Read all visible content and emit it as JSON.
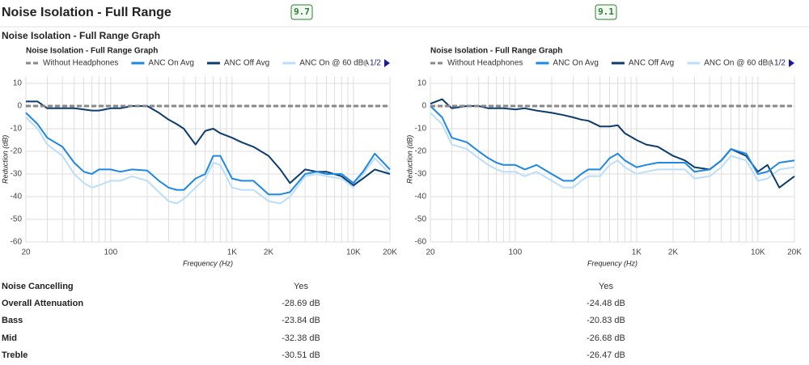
{
  "header": {
    "title": "Noise Isolation - Full Range",
    "scores": [
      9.7,
      9.1
    ]
  },
  "section_title": "Noise Isolation - Full Range Graph",
  "chart_data": [
    {
      "type": "line",
      "title": "Noise Isolation - Full Range Graph",
      "x_label": "Frequency (Hz)",
      "y_label": "Reduction (dB)",
      "log_x": true,
      "grid": true,
      "legend_page": "1/2",
      "x": [
        20,
        25,
        30,
        40,
        50,
        60,
        70,
        80,
        100,
        120,
        150,
        200,
        250,
        300,
        350,
        400,
        500,
        600,
        700,
        800,
        1000,
        1200,
        1500,
        2000,
        2500,
        3000,
        4000,
        5000,
        6000,
        8000,
        10000,
        12000,
        15000,
        20000
      ],
      "xlim": [
        20,
        20000
      ],
      "xticks": [
        20,
        100,
        {
          "value": 1000,
          "label": "1K"
        },
        {
          "value": 2000,
          "label": "2K"
        },
        {
          "value": 10000,
          "label": "10K"
        },
        {
          "value": 20000,
          "label": "20K"
        }
      ],
      "xminor_ticks": [
        30,
        40,
        50,
        60,
        70,
        80,
        90,
        200,
        300,
        400,
        500,
        600,
        700,
        800,
        900,
        3000,
        4000,
        5000,
        6000,
        7000,
        8000,
        9000
      ],
      "ylim": [
        -60,
        13
      ],
      "yticks": [
        -60,
        -50,
        -40,
        -30,
        -20,
        -10,
        0,
        10
      ],
      "series": [
        {
          "name": "Without Headphones",
          "color": "#888888",
          "line_style": "dashed",
          "values": [
            0,
            0,
            0,
            0,
            0,
            0,
            0,
            0,
            0,
            0,
            0,
            0,
            0,
            0,
            0,
            0,
            0,
            0,
            0,
            0,
            0,
            0,
            0,
            0,
            0,
            0,
            0,
            0,
            0,
            0,
            0,
            0,
            0,
            0
          ]
        },
        {
          "name": "ANC On Avg",
          "color": "#1e88e5",
          "line_style": "solid",
          "values": [
            -3,
            -8,
            -14,
            -18,
            -25,
            -29,
            -30,
            -28,
            -28,
            -29,
            -28,
            -28.5,
            -33,
            -36,
            -37,
            -37,
            -32,
            -30,
            -22,
            -22,
            -32,
            -33,
            -33,
            -39,
            -39,
            -38,
            -30,
            -29,
            -30,
            -30,
            -34,
            -29,
            -21,
            -28
          ]
        },
        {
          "name": "ANC Off Avg",
          "color": "#0d3c6e",
          "line_style": "solid",
          "values": [
            2,
            2,
            -1,
            -1,
            -1,
            -1.5,
            -2,
            -2,
            -1,
            -1,
            0,
            0,
            -3,
            -6,
            -8,
            -10,
            -17,
            -11,
            -10,
            -12,
            -14,
            -16,
            -18,
            -22,
            -28,
            -34,
            -28,
            -29,
            -29,
            -31,
            -35,
            -32,
            -28,
            -30
          ]
        },
        {
          "name": "ANC On @ 60 dBA",
          "color": "#bbdefb",
          "line_style": "solid",
          "values": [
            -5,
            -10,
            -17,
            -22,
            -30,
            -34,
            -36,
            -35,
            -33,
            -33,
            -31,
            -33,
            -38,
            -42,
            -43,
            -41,
            -36,
            -32,
            -25,
            -26,
            -36,
            -37,
            -37,
            -42,
            -43,
            -40,
            -31,
            -30,
            -31,
            -32,
            -36,
            -30,
            -23,
            -30
          ]
        }
      ]
    },
    {
      "type": "line",
      "title": "Noise Isolation - Full Range Graph",
      "x_label": "Frequency (Hz)",
      "y_label": "Reduction (dB)",
      "log_x": true,
      "grid": true,
      "legend_page": "1/2",
      "x": [
        20,
        25,
        30,
        40,
        50,
        60,
        70,
        80,
        100,
        120,
        150,
        200,
        250,
        300,
        350,
        400,
        500,
        600,
        700,
        800,
        1000,
        1200,
        1500,
        2000,
        2500,
        3000,
        4000,
        5000,
        6000,
        8000,
        10000,
        12000,
        15000,
        20000
      ],
      "xlim": [
        20,
        20000
      ],
      "xticks": [
        20,
        100,
        {
          "value": 1000,
          "label": "1K"
        },
        {
          "value": 2000,
          "label": "2K"
        },
        {
          "value": 10000,
          "label": "10K"
        },
        {
          "value": 20000,
          "label": "20K"
        }
      ],
      "xminor_ticks": [
        30,
        40,
        50,
        60,
        70,
        80,
        90,
        200,
        300,
        400,
        500,
        600,
        700,
        800,
        900,
        3000,
        4000,
        5000,
        6000,
        7000,
        8000,
        9000
      ],
      "ylim": [
        -60,
        13
      ],
      "yticks": [
        -60,
        -50,
        -40,
        -30,
        -20,
        -10,
        0,
        10
      ],
      "series": [
        {
          "name": "Without Headphones",
          "color": "#888888",
          "line_style": "dashed",
          "values": [
            0,
            0,
            0,
            0,
            0,
            0,
            0,
            0,
            0,
            0,
            0,
            0,
            0,
            0,
            0,
            0,
            0,
            0,
            0,
            0,
            0,
            0,
            0,
            0,
            0,
            0,
            0,
            0,
            0,
            0,
            0,
            0,
            0,
            0
          ]
        },
        {
          "name": "ANC On Avg",
          "color": "#1e88e5",
          "line_style": "solid",
          "values": [
            0,
            -5,
            -14,
            -16,
            -20,
            -23,
            -25,
            -26,
            -26,
            -28,
            -26,
            -30,
            -33,
            -33,
            -30,
            -28,
            -28,
            -23,
            -21,
            -24,
            -27,
            -26,
            -25,
            -25,
            -25,
            -29,
            -28,
            -24,
            -19,
            -21,
            -30,
            -29,
            -25,
            -24
          ]
        },
        {
          "name": "ANC Off Avg",
          "color": "#0d3c6e",
          "line_style": "solid",
          "values": [
            1,
            3,
            -1,
            0,
            0,
            -1,
            -1,
            -1,
            -1.5,
            -1,
            -2,
            -3,
            -4,
            -5,
            -6,
            -6.5,
            -9,
            -9,
            -8.5,
            -12,
            -15,
            -17,
            -18,
            -22,
            -24,
            -27,
            -28,
            -24,
            -19,
            -22,
            -29,
            -26,
            -36,
            -31
          ]
        },
        {
          "name": "ANC On @ 60 dBA",
          "color": "#bbdefb",
          "line_style": "solid",
          "values": [
            -3,
            -8,
            -17,
            -19,
            -23,
            -26,
            -28,
            -29,
            -29,
            -31,
            -29,
            -33,
            -36,
            -36,
            -33,
            -31,
            -31,
            -26,
            -24,
            -27,
            -30,
            -29,
            -28,
            -28,
            -28,
            -32,
            -31,
            -27,
            -22,
            -24,
            -33,
            -32,
            -28,
            -27
          ]
        }
      ]
    }
  ],
  "table": {
    "rows": [
      [
        "Noise Cancelling",
        "Yes",
        "Yes"
      ],
      [
        "Overall Attenuation",
        "-28.69 dB",
        "-24.48 dB"
      ],
      [
        "Bass",
        "-23.84 dB",
        "-20.83 dB"
      ],
      [
        "Mid",
        "-32.38 dB",
        "-26.68 dB"
      ],
      [
        "Treble",
        "-30.51 dB",
        "-26.47 dB"
      ]
    ]
  }
}
